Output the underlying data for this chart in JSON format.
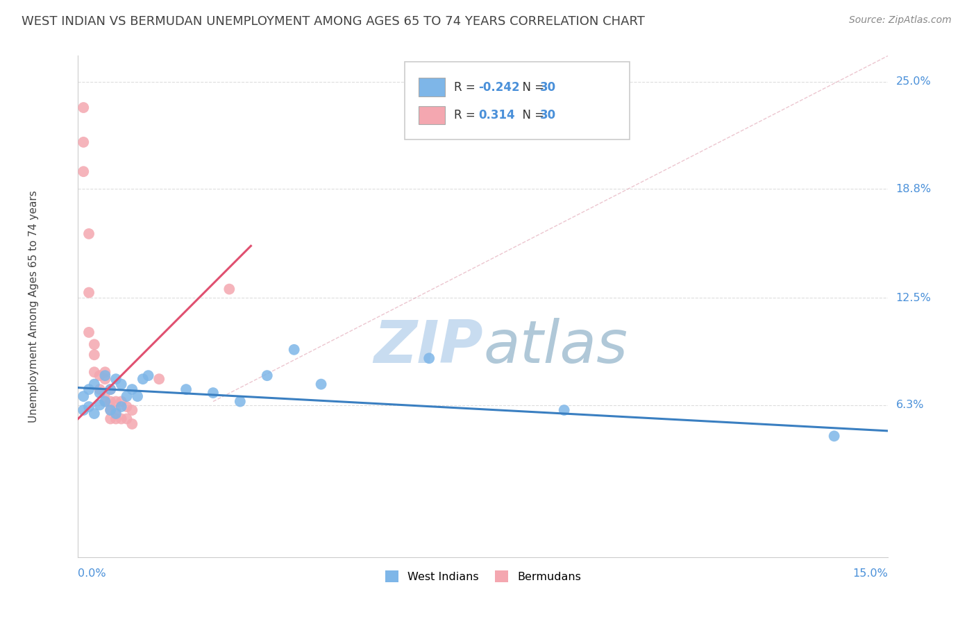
{
  "title": "WEST INDIAN VS BERMUDAN UNEMPLOYMENT AMONG AGES 65 TO 74 YEARS CORRELATION CHART",
  "source": "Source: ZipAtlas.com",
  "ylabel": "Unemployment Among Ages 65 to 74 years",
  "ytick_labels": [
    "25.0%",
    "18.8%",
    "12.5%",
    "6.3%"
  ],
  "ytick_values": [
    0.25,
    0.188,
    0.125,
    0.063
  ],
  "xtick_labels": [
    "0.0%",
    "15.0%"
  ],
  "xlim": [
    0.0,
    0.15
  ],
  "ylim": [
    -0.025,
    0.265
  ],
  "R_west_indian": -0.242,
  "N_west_indian": 30,
  "R_bermudan": 0.314,
  "N_bermudan": 30,
  "west_indian_color": "#7EB6E8",
  "bermudan_color": "#F4A7B0",
  "west_indian_line_color": "#3A7FC1",
  "bermudan_line_color": "#E05070",
  "grid_color": "#DDDDDD",
  "title_color": "#444444",
  "axis_label_color": "#4A90D9",
  "watermark_color": "#C8DCF0",
  "background_color": "#FFFFFF",
  "west_indian_x": [
    0.001,
    0.001,
    0.002,
    0.002,
    0.003,
    0.003,
    0.004,
    0.004,
    0.005,
    0.005,
    0.006,
    0.006,
    0.007,
    0.007,
    0.008,
    0.008,
    0.009,
    0.01,
    0.011,
    0.012,
    0.013,
    0.02,
    0.025,
    0.03,
    0.035,
    0.04,
    0.045,
    0.065,
    0.09,
    0.14
  ],
  "west_indian_y": [
    0.068,
    0.06,
    0.072,
    0.062,
    0.075,
    0.058,
    0.07,
    0.063,
    0.08,
    0.065,
    0.072,
    0.06,
    0.078,
    0.058,
    0.075,
    0.062,
    0.068,
    0.072,
    0.068,
    0.078,
    0.08,
    0.072,
    0.07,
    0.065,
    0.08,
    0.095,
    0.075,
    0.09,
    0.06,
    0.045
  ],
  "bermudan_x": [
    0.001,
    0.001,
    0.001,
    0.002,
    0.002,
    0.002,
    0.003,
    0.003,
    0.003,
    0.004,
    0.004,
    0.005,
    0.005,
    0.005,
    0.005,
    0.006,
    0.006,
    0.006,
    0.006,
    0.007,
    0.007,
    0.007,
    0.008,
    0.008,
    0.009,
    0.009,
    0.01,
    0.01,
    0.015,
    0.028
  ],
  "bermudan_y": [
    0.235,
    0.215,
    0.198,
    0.162,
    0.128,
    0.105,
    0.098,
    0.092,
    0.082,
    0.08,
    0.072,
    0.082,
    0.078,
    0.07,
    0.065,
    0.072,
    0.065,
    0.06,
    0.055,
    0.065,
    0.06,
    0.055,
    0.065,
    0.055,
    0.062,
    0.055,
    0.06,
    0.052,
    0.078,
    0.13
  ],
  "wi_line_x": [
    0.0,
    0.15
  ],
  "wi_line_y": [
    0.073,
    0.048
  ],
  "bm_line_x": [
    0.0,
    0.032
  ],
  "bm_line_y": [
    0.055,
    0.155
  ],
  "diag_line_x": [
    0.025,
    0.15
  ],
  "diag_line_y": [
    0.065,
    0.265
  ],
  "legend_title_color": "#333333",
  "legend_value_color": "#4A90D9"
}
